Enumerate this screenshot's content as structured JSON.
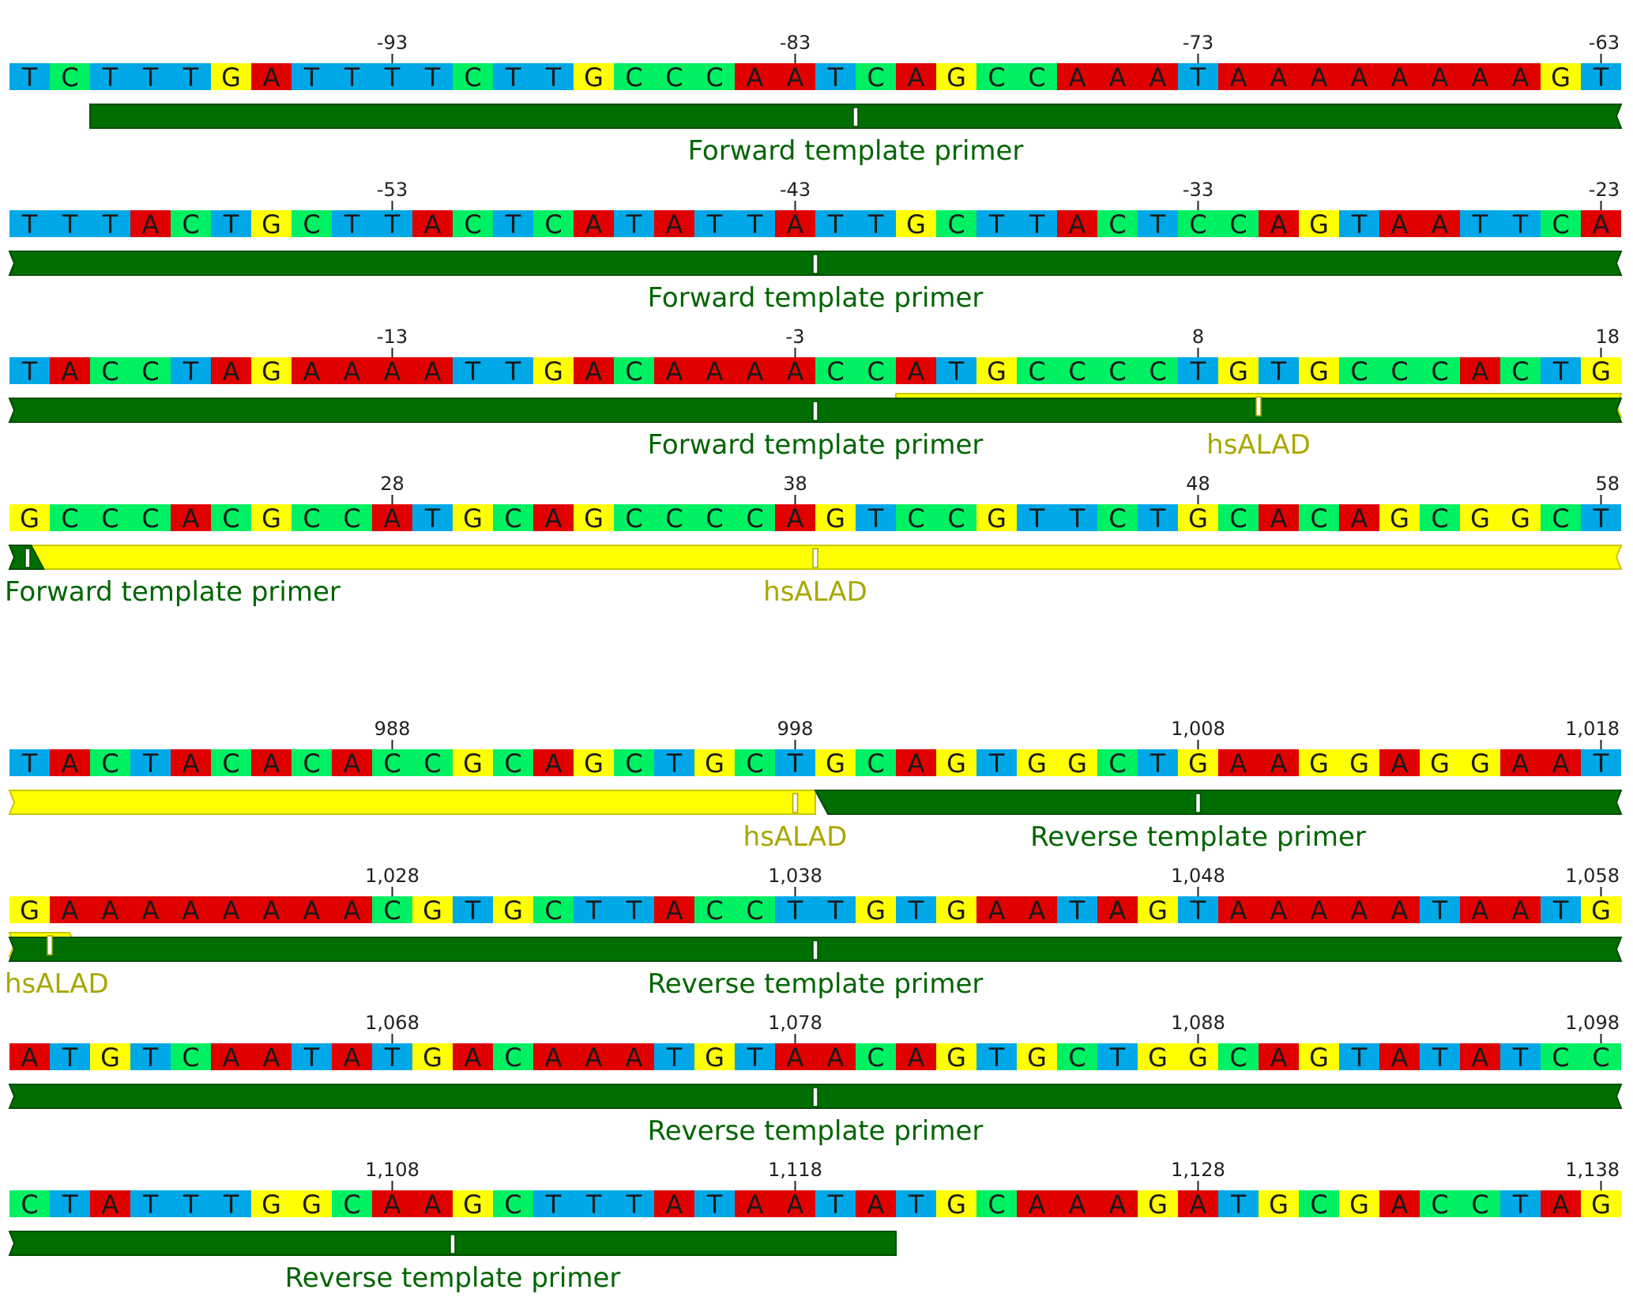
{
  "colors": {
    "A": "#e00000",
    "C": "#00f064",
    "G": "#ffff00",
    "T": "#00a8e8",
    "forward_primer": "#006e00",
    "reverse_primer": "#006e00",
    "hsALAD": "#ffff00",
    "hsALAD_label": "#a8a800",
    "primer_label": "#006400"
  },
  "rows": [
    {
      "sequence": "TCTTTGATTTTCTTGCCCAATCAGCCAAATAAAAAAAAGT",
      "ticks": [
        {
          "idx": 9,
          "label": "-93"
        },
        {
          "idx": 19,
          "label": "-83"
        },
        {
          "idx": 29,
          "label": "-73"
        },
        {
          "idx": 39,
          "label": "-63"
        }
      ],
      "features": [
        {
          "name": "Forward template primer",
          "kind": "forward_primer",
          "start": 2,
          "end": 40,
          "open_right": true,
          "marker": 21
        }
      ]
    },
    {
      "sequence": "TTTACTGCTTACTCATATTATTGCTTACTCCAGTAATTCA",
      "ticks": [
        {
          "idx": 9,
          "label": "-53"
        },
        {
          "idx": 19,
          "label": "-43"
        },
        {
          "idx": 29,
          "label": "-33"
        },
        {
          "idx": 39,
          "label": "-23"
        }
      ],
      "features": [
        {
          "name": "Forward template primer",
          "kind": "forward_primer",
          "start": 0,
          "end": 40,
          "open_left": true,
          "open_right": true,
          "marker": 20
        }
      ]
    },
    {
      "sequence": "TACCTAGAAAATTGACAAAACCATGCCCCTGTGCCCACTG",
      "ticks": [
        {
          "idx": 9,
          "label": "-13"
        },
        {
          "idx": 19,
          "label": "-3"
        },
        {
          "idx": 29,
          "label": "8"
        },
        {
          "idx": 39,
          "label": "18"
        }
      ],
      "features": [
        {
          "name": "hsALAD",
          "kind": "hsALAD",
          "start": 22,
          "end": 40,
          "open_right": true,
          "back": true,
          "marker": 31
        },
        {
          "name": "Forward template primer",
          "kind": "forward_primer",
          "start": 0,
          "end": 40,
          "open_left": true,
          "open_right": true,
          "marker": 20
        }
      ]
    },
    {
      "sequence": "GCCCACGCCATGCAGCCCCAGTCCGTTCTGCACAGCGGCT",
      "ticks": [
        {
          "idx": 9,
          "label": "28"
        },
        {
          "idx": 19,
          "label": "38"
        },
        {
          "idx": 29,
          "label": "48"
        },
        {
          "idx": 39,
          "label": "58"
        }
      ],
      "features": [
        {
          "name": "hsALAD",
          "kind": "hsALAD",
          "start": 0,
          "end": 40,
          "open_left": true,
          "open_right": true,
          "marker": 20
        },
        {
          "name": "Forward template primer",
          "kind": "forward_primer",
          "start": 0,
          "end": 0.85,
          "open_left": true,
          "tip_right": true,
          "marker": 0.45
        }
      ]
    },
    {
      "sequence": "TACTACACACCGCAGCTGCTGCAGTGGCTGAAGGAGGAAT",
      "ticks": [
        {
          "idx": 9,
          "label": "988"
        },
        {
          "idx": 19,
          "label": "998"
        },
        {
          "idx": 29,
          "label": "1,008"
        },
        {
          "idx": 39,
          "label": "1,018"
        }
      ],
      "features": [
        {
          "name": "hsALAD",
          "kind": "hsALAD",
          "start": 0,
          "end": 20,
          "open_left": true,
          "marker": 19.5
        },
        {
          "name": "Reverse template primer",
          "kind": "reverse_primer",
          "start": 20,
          "end": 40,
          "tip_left": true,
          "open_right": true,
          "marker": 29.5
        }
      ]
    },
    {
      "sequence": "GAAAAAAAACGTGCTTACCTTGTGAATAGTAAAAATAATG",
      "ticks": [
        {
          "idx": 9,
          "label": "1,028"
        },
        {
          "idx": 19,
          "label": "1,038"
        },
        {
          "idx": 29,
          "label": "1,048"
        },
        {
          "idx": 39,
          "label": "1,058"
        }
      ],
      "features": [
        {
          "name": "hsALAD",
          "kind": "hsALAD",
          "start": 0,
          "end": 1.8,
          "open_left": true,
          "tip_right": true,
          "back": true,
          "marker": 1
        },
        {
          "name": "Reverse template primer",
          "kind": "reverse_primer",
          "start": 0,
          "end": 40,
          "open_left": true,
          "open_right": true,
          "marker": 20
        }
      ]
    },
    {
      "sequence": "ATGTCAATATGACAAATGTAACAGTGCTGGCAGTATATCC",
      "ticks": [
        {
          "idx": 9,
          "label": "1,068"
        },
        {
          "idx": 19,
          "label": "1,078"
        },
        {
          "idx": 29,
          "label": "1,088"
        },
        {
          "idx": 39,
          "label": "1,098"
        }
      ],
      "features": [
        {
          "name": "Reverse template primer",
          "kind": "reverse_primer",
          "start": 0,
          "end": 40,
          "open_left": true,
          "open_right": true,
          "marker": 20
        }
      ]
    },
    {
      "sequence": "CTATTTGGCAAGCTTTATAATATGCAAAGATGCGACCTAG",
      "ticks": [
        {
          "idx": 9,
          "label": "1,108"
        },
        {
          "idx": 19,
          "label": "1,118"
        },
        {
          "idx": 29,
          "label": "1,128"
        },
        {
          "idx": 39,
          "label": "1,138"
        }
      ],
      "features": [
        {
          "name": "Reverse template primer",
          "kind": "reverse_primer",
          "start": 0,
          "end": 22,
          "open_left": true,
          "marker": 11
        }
      ]
    }
  ]
}
